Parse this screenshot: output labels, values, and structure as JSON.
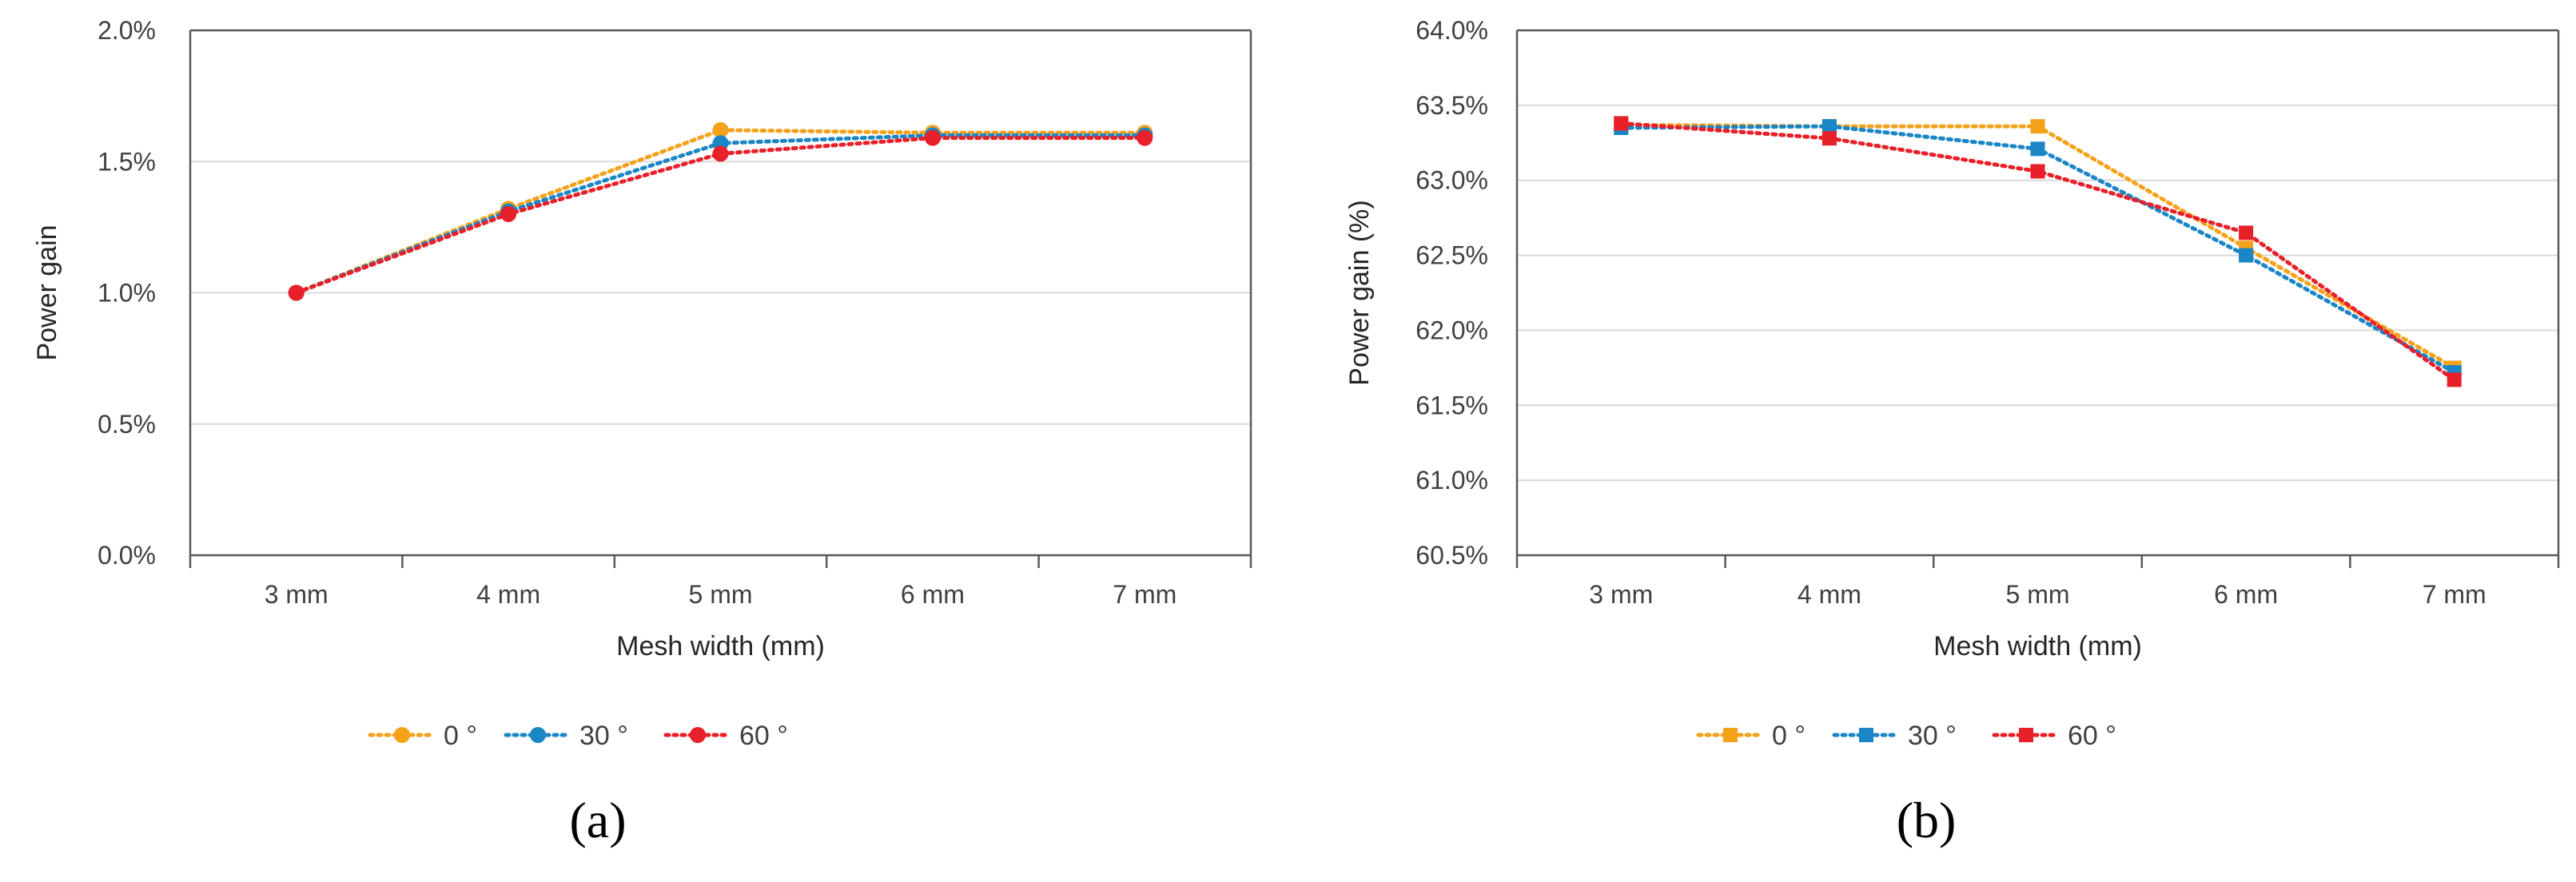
{
  "chart_data": [
    {
      "type": "line",
      "panel_label": "(a)",
      "categories": [
        "3 mm",
        "4 mm",
        "5 mm",
        "6 mm",
        "7 mm"
      ],
      "xlabel": "Mesh width (mm)",
      "ylabel": "Power gain",
      "ylim": [
        0,
        2.0
      ],
      "yticks": [
        "0.0%",
        "0.5%",
        "1.0%",
        "1.5%",
        "2.0%"
      ],
      "ytick_values": [
        0,
        0.5,
        1.0,
        1.5,
        2.0
      ],
      "unit": "%",
      "grid": true,
      "legend_position": "bottom",
      "marker": "circle",
      "series": [
        {
          "name": "0 °",
          "color": "#F5A21B",
          "values": [
            1.0,
            1.32,
            1.62,
            1.61,
            1.61
          ]
        },
        {
          "name": "30 °",
          "color": "#1B86C6",
          "values": [
            1.0,
            1.31,
            1.57,
            1.6,
            1.6
          ]
        },
        {
          "name": "60 °",
          "color": "#E8202A",
          "values": [
            1.0,
            1.3,
            1.53,
            1.59,
            1.59
          ]
        }
      ]
    },
    {
      "type": "line",
      "panel_label": "(b)",
      "categories": [
        "3 mm",
        "4 mm",
        "5 mm",
        "6 mm",
        "7 mm"
      ],
      "xlabel": "Mesh width (mm)",
      "ylabel": "Power gain (%)",
      "ylim": [
        60.5,
        64.0
      ],
      "yticks": [
        "60.5%",
        "61.0%",
        "61.5%",
        "62.0%",
        "62.5%",
        "63.0%",
        "63.5%",
        "64.0%"
      ],
      "ytick_values": [
        60.5,
        61.0,
        61.5,
        62.0,
        62.5,
        63.0,
        63.5,
        64.0
      ],
      "unit": "%",
      "grid": true,
      "legend_position": "bottom",
      "marker": "square",
      "series": [
        {
          "name": "0 °",
          "color": "#F5A21B",
          "values": [
            63.37,
            63.36,
            63.36,
            62.55,
            61.75
          ]
        },
        {
          "name": "30 °",
          "color": "#1B86C6",
          "values": [
            63.35,
            63.36,
            63.21,
            62.5,
            61.72
          ]
        },
        {
          "name": "60 °",
          "color": "#E8202A",
          "values": [
            63.38,
            63.28,
            63.06,
            62.65,
            61.67
          ]
        }
      ]
    }
  ]
}
